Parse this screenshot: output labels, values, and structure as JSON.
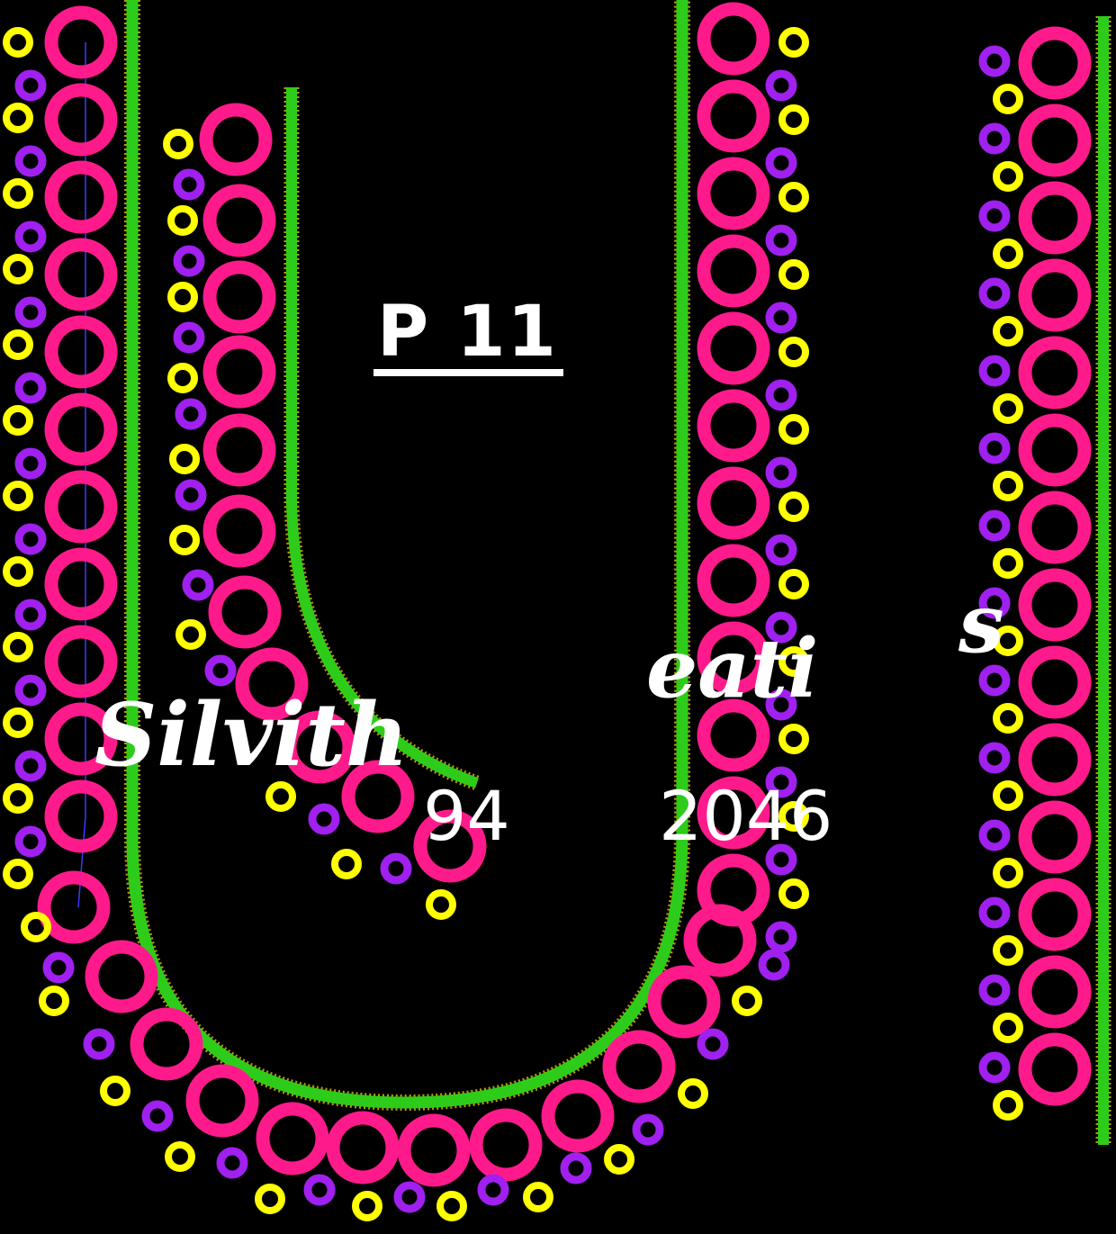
{
  "design": {
    "label": "P 11",
    "watermark_parts": [
      "Silvith",
      "eati",
      "s"
    ],
    "phone_parts": [
      "94",
      "2046"
    ]
  },
  "colors": {
    "background": "#000000",
    "large_ring": "#ff1a8c",
    "yellow_ring": "#ffff00",
    "purple_ring": "#a020f0",
    "piping": "#2ecc1a",
    "guide_line": "#3a3aff"
  }
}
